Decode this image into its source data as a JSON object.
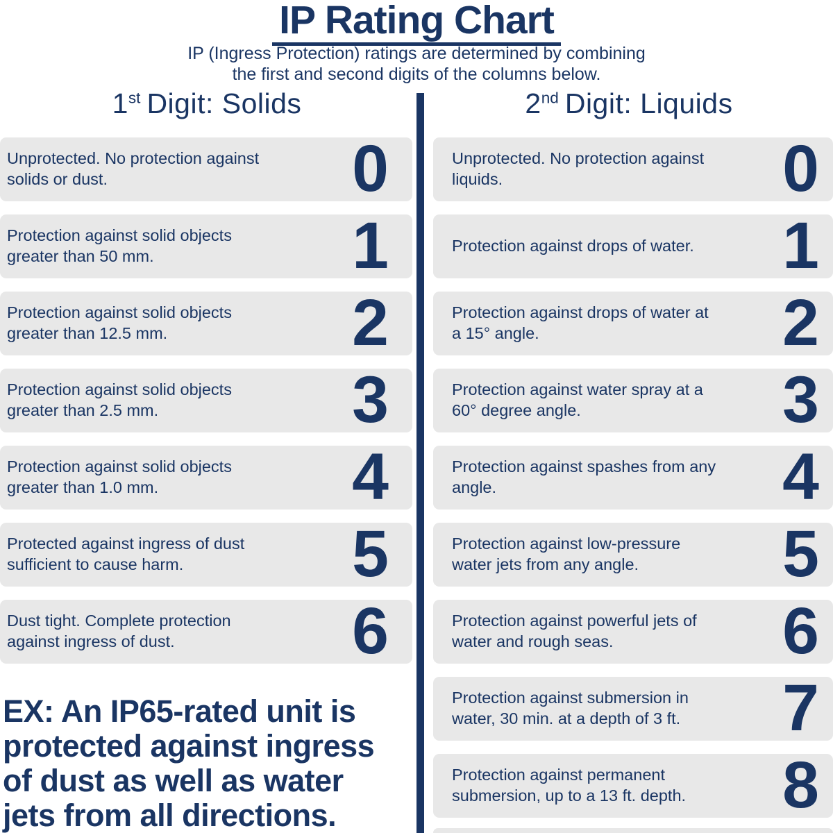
{
  "colors": {
    "navy": "#1a3563",
    "row_bg": "#e8e8e8"
  },
  "header": {
    "title": "IP Rating Chart",
    "subtitle": "IP (Ingress Protection) ratings are determined by combining\nthe first and second digits of the columns below."
  },
  "example_note": "EX: An IP65-rated unit is\nprotected against ingress\nof dust as well as water\njets from all directions.",
  "chart_data": {
    "type": "table",
    "title": "IP Rating Chart",
    "tables": [
      {
        "heading": "1st Digit: Solids",
        "heading_num": "1",
        "heading_sup": "st",
        "heading_rest": "Digit: Solids",
        "rows": [
          {
            "digit": "0",
            "description": "Unprotected. No protection against\nsolids or dust."
          },
          {
            "digit": "1",
            "description": "Protection against solid objects\ngreater than 50 mm."
          },
          {
            "digit": "2",
            "description": "Protection against solid objects\ngreater than 12.5 mm."
          },
          {
            "digit": "3",
            "description": "Protection against solid objects\ngreater than 2.5 mm."
          },
          {
            "digit": "4",
            "description": "Protection against solid objects\ngreater than 1.0 mm."
          },
          {
            "digit": "5",
            "description": "Protected against ingress of dust\nsufficient to cause harm."
          },
          {
            "digit": "6",
            "description": "Dust tight. Complete protection\nagainst ingress of dust."
          }
        ]
      },
      {
        "heading": "2nd Digit: Liquids",
        "heading_num": "2",
        "heading_sup": "nd",
        "heading_rest": "Digit: Liquids",
        "rows": [
          {
            "digit": "0",
            "description": "Unprotected. No protection against\nliquids."
          },
          {
            "digit": "1",
            "description": "Protection against drops of water."
          },
          {
            "digit": "2",
            "description": "Protection against drops of water at\na 15° angle."
          },
          {
            "digit": "3",
            "description": "Protection against water spray at a\n60° degree angle."
          },
          {
            "digit": "4",
            "description": "Protection against spashes from any\nangle."
          },
          {
            "digit": "5",
            "description": "Protection against low-pressure\nwater jets from any angle."
          },
          {
            "digit": "6",
            "description": "Protection against powerful jets of\nwater and rough seas."
          },
          {
            "digit": "7",
            "description": "Protection against submersion in\nwater, 30 min. at a depth of 3 ft."
          },
          {
            "digit": "8",
            "description": "Protection against permanent\nsubmersion, up to a 13 ft. depth."
          }
        ]
      }
    ]
  }
}
